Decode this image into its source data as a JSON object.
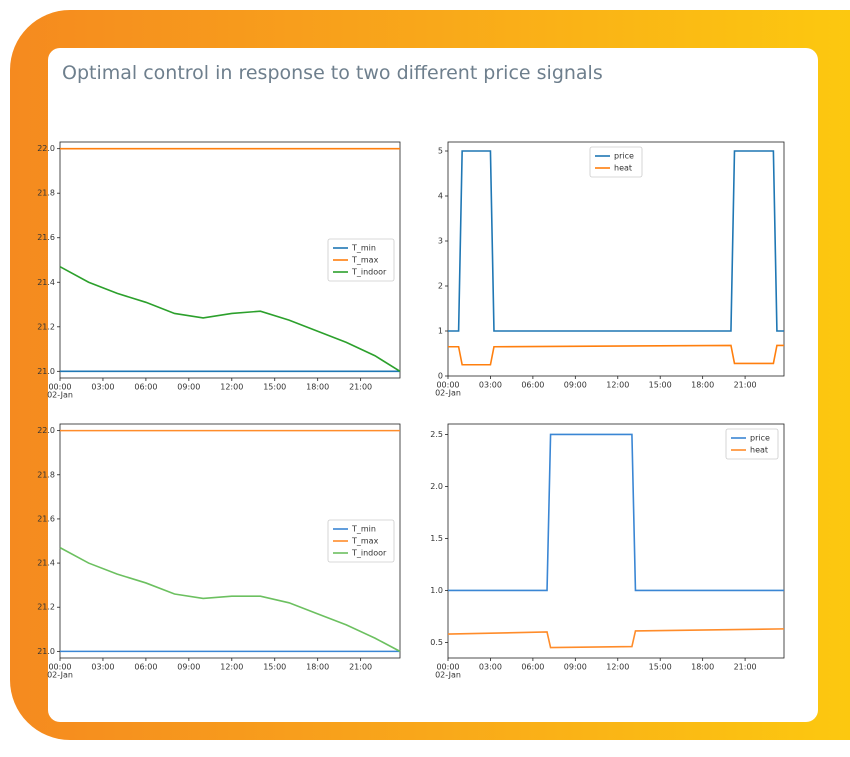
{
  "title": "Optimal control in response to two different price signals",
  "chart_data": [
    {
      "type": "line",
      "x": [
        0,
        2,
        4,
        6,
        8,
        10,
        12,
        14,
        16,
        18,
        20,
        22,
        23.75
      ],
      "xlim": [
        0,
        23.75
      ],
      "xticks": [
        {
          "value": 0,
          "label": "00:00"
        },
        {
          "value": 3,
          "label": "03:00"
        },
        {
          "value": 6,
          "label": "06:00"
        },
        {
          "value": 9,
          "label": "09:00"
        },
        {
          "value": 12,
          "label": "12:00"
        },
        {
          "value": 15,
          "label": "15:00"
        },
        {
          "value": 18,
          "label": "18:00"
        },
        {
          "value": 21,
          "label": "21:00"
        }
      ],
      "x_sublabel": "02-Jan",
      "ylim": [
        20.97,
        22.03
      ],
      "yticks": [
        {
          "value": 21,
          "label": "21.0"
        },
        21.2,
        21.4,
        21.6,
        21.8,
        {
          "value": 22,
          "label": "22.0"
        }
      ],
      "legend": "center right",
      "series": [
        {
          "name": "T_min",
          "color": "#1f77b4",
          "values": [
            21,
            21,
            21,
            21,
            21,
            21,
            21,
            21,
            21,
            21,
            21,
            21,
            21
          ]
        },
        {
          "name": "T_max",
          "color": "#ff7f0e",
          "values": [
            22,
            22,
            22,
            22,
            22,
            22,
            22,
            22,
            22,
            22,
            22,
            22,
            22
          ]
        },
        {
          "name": "T_indoor",
          "color": "#2ca02c",
          "values": [
            21.47,
            21.4,
            21.35,
            21.31,
            21.26,
            21.24,
            21.26,
            21.27,
            21.23,
            21.18,
            21.13,
            21.07,
            21.0
          ]
        }
      ]
    },
    {
      "type": "line",
      "x": [
        0,
        0.75,
        1,
        3,
        3.25,
        20,
        20.25,
        23,
        23.25,
        23.75
      ],
      "xlim": [
        0,
        23.75
      ],
      "xticks": [
        {
          "value": 0,
          "label": "00:00"
        },
        {
          "value": 3,
          "label": "03:00"
        },
        {
          "value": 6,
          "label": "06:00"
        },
        {
          "value": 9,
          "label": "09:00"
        },
        {
          "value": 12,
          "label": "12:00"
        },
        {
          "value": 15,
          "label": "15:00"
        },
        {
          "value": 18,
          "label": "18:00"
        },
        {
          "value": 21,
          "label": "21:00"
        }
      ],
      "x_sublabel": "02-Jan",
      "ylim": [
        0,
        5.2
      ],
      "yticks": [
        0,
        1,
        2,
        3,
        4,
        5
      ],
      "legend": "upper center",
      "series": [
        {
          "name": "price",
          "color": "#1f77b4",
          "values": [
            1,
            1,
            5,
            5,
            1,
            1,
            5,
            5,
            1,
            1
          ]
        },
        {
          "name": "heat",
          "color": "#ff7f0e",
          "values": [
            0.65,
            0.65,
            0.25,
            0.25,
            0.65,
            0.68,
            0.28,
            0.28,
            0.68,
            0.68
          ]
        }
      ]
    },
    {
      "type": "line",
      "x": [
        0,
        2,
        4,
        6,
        8,
        10,
        12,
        14,
        16,
        18,
        20,
        22,
        23.75
      ],
      "xlim": [
        0,
        23.75
      ],
      "xticks": [
        {
          "value": 0,
          "label": "00:00"
        },
        {
          "value": 3,
          "label": "03:00"
        },
        {
          "value": 6,
          "label": "06:00"
        },
        {
          "value": 9,
          "label": "09:00"
        },
        {
          "value": 12,
          "label": "12:00"
        },
        {
          "value": 15,
          "label": "15:00"
        },
        {
          "value": 18,
          "label": "18:00"
        },
        {
          "value": 21,
          "label": "21:00"
        }
      ],
      "x_sublabel": "02-Jan",
      "ylim": [
        20.97,
        22.03
      ],
      "yticks": [
        {
          "value": 21,
          "label": "21.0"
        },
        21.2,
        21.4,
        21.6,
        21.8,
        {
          "value": 22,
          "label": "22.0"
        }
      ],
      "legend": "center right",
      "series": [
        {
          "name": "T_min",
          "color": "#3a86d4",
          "values": [
            21,
            21,
            21,
            21,
            21,
            21,
            21,
            21,
            21,
            21,
            21,
            21,
            21
          ]
        },
        {
          "name": "T_max",
          "color": "#ff8c2a",
          "values": [
            22,
            22,
            22,
            22,
            22,
            22,
            22,
            22,
            22,
            22,
            22,
            22,
            22
          ]
        },
        {
          "name": "T_indoor",
          "color": "#6cc060",
          "values": [
            21.47,
            21.4,
            21.35,
            21.31,
            21.26,
            21.24,
            21.25,
            21.25,
            21.22,
            21.17,
            21.12,
            21.06,
            21.0
          ]
        }
      ]
    },
    {
      "type": "line",
      "x": [
        0,
        7,
        7.25,
        13,
        13.25,
        23.75
      ],
      "xlim": [
        0,
        23.75
      ],
      "xticks": [
        {
          "value": 0,
          "label": "00:00"
        },
        {
          "value": 3,
          "label": "03:00"
        },
        {
          "value": 6,
          "label": "06:00"
        },
        {
          "value": 9,
          "label": "09:00"
        },
        {
          "value": 12,
          "label": "12:00"
        },
        {
          "value": 15,
          "label": "15:00"
        },
        {
          "value": 18,
          "label": "18:00"
        },
        {
          "value": 21,
          "label": "21:00"
        }
      ],
      "x_sublabel": "02-Jan",
      "ylim": [
        0.35,
        2.6
      ],
      "yticks": [
        0.5,
        {
          "value": 1,
          "label": "1.0"
        },
        1.5,
        {
          "value": 2,
          "label": "2.0"
        },
        2.5
      ],
      "legend": "upper right",
      "series": [
        {
          "name": "price",
          "color": "#3a86d4",
          "values": [
            1,
            1,
            2.5,
            2.5,
            1,
            1
          ]
        },
        {
          "name": "heat",
          "color": "#ff8c2a",
          "values": [
            0.58,
            0.6,
            0.45,
            0.46,
            0.61,
            0.63
          ]
        }
      ]
    }
  ]
}
